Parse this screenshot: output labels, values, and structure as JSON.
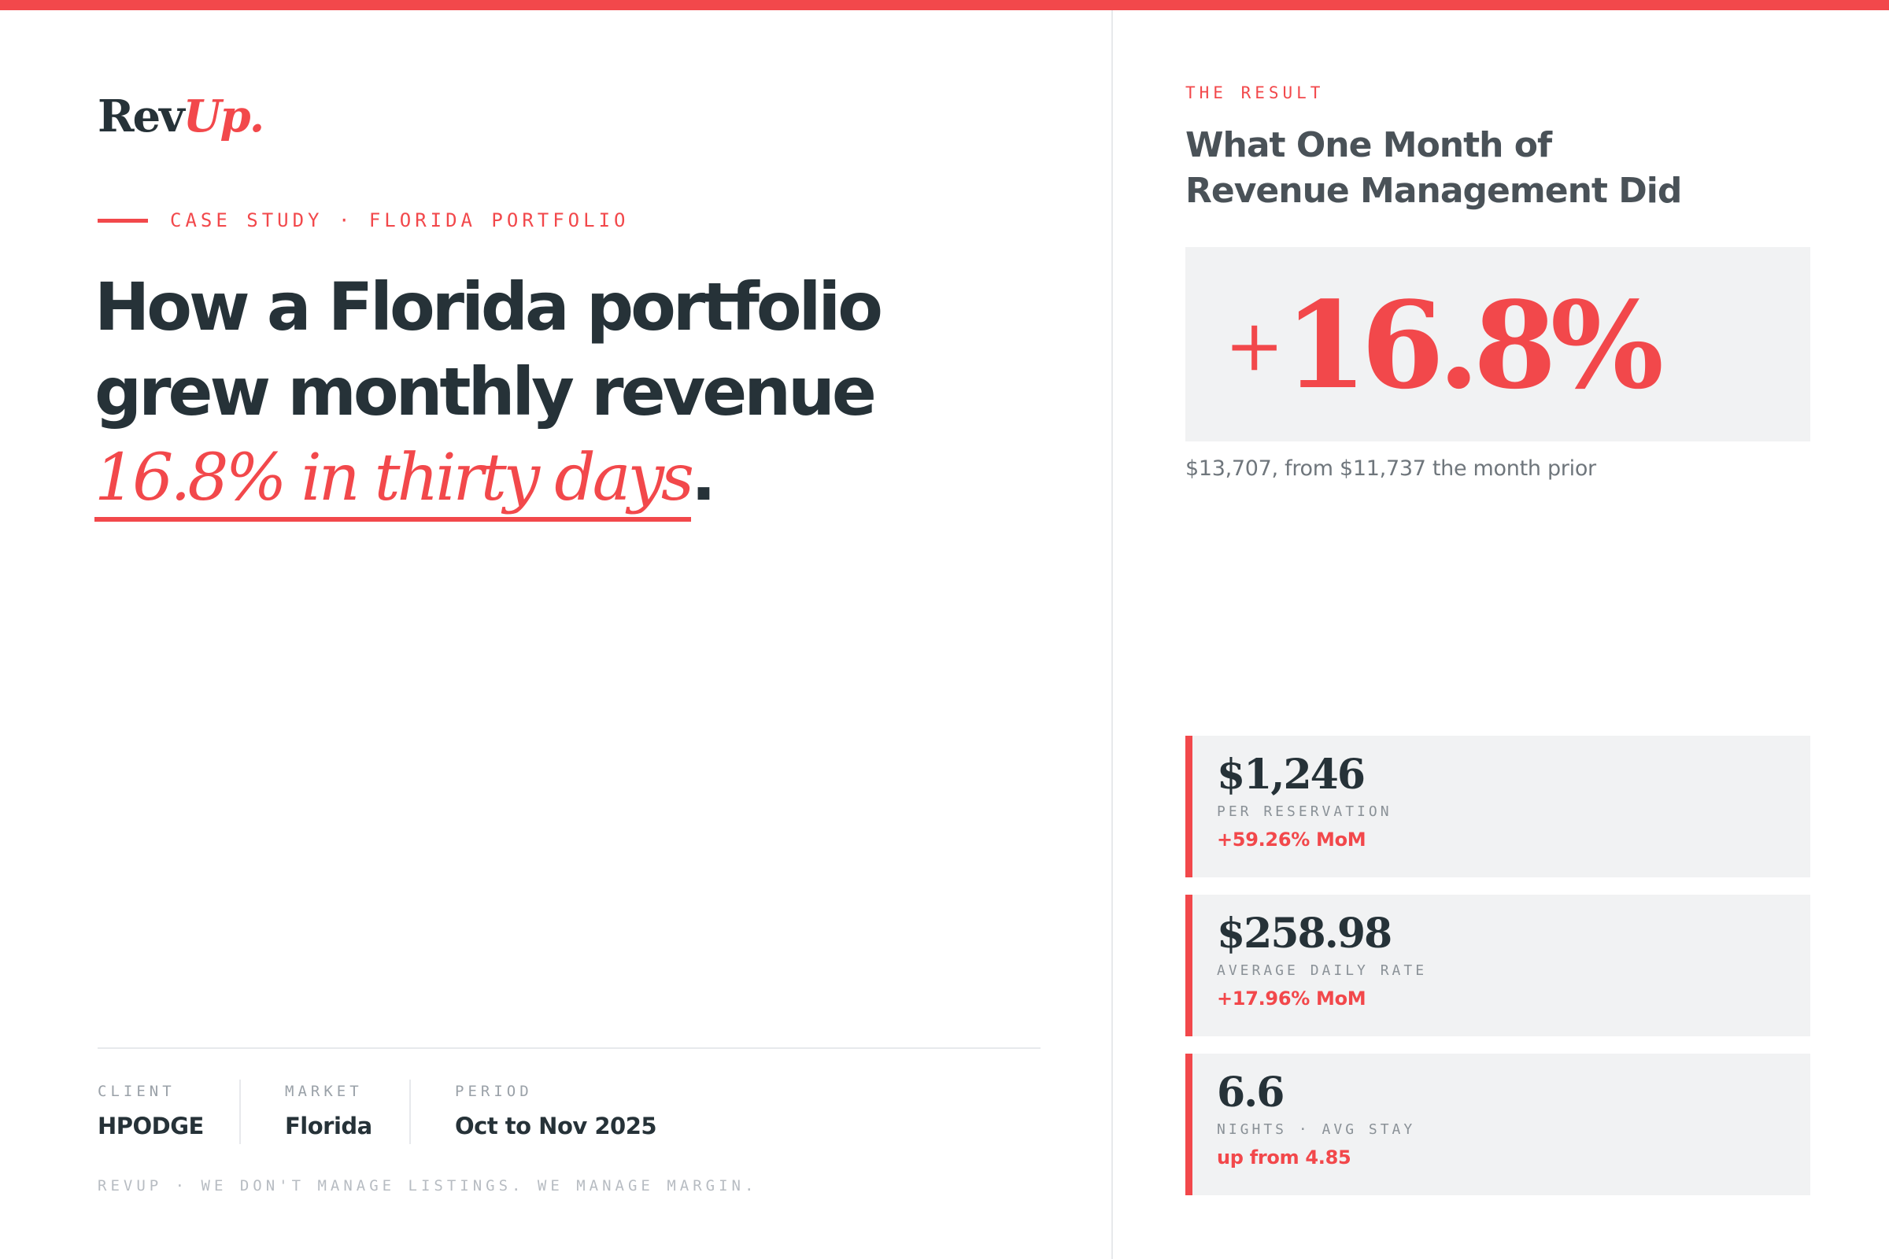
{
  "brand": {
    "name_part1": "Rev",
    "name_part2": "Up."
  },
  "eyebrow": "CASE STUDY · FLORIDA PORTFOLIO",
  "headline": {
    "line1": "How a Florida portfolio",
    "line2": "grew monthly revenue",
    "accent": "16.8% in thirty days",
    "period": "."
  },
  "meta": [
    {
      "label": "CLIENT",
      "value": "HPODGE"
    },
    {
      "label": "MARKET",
      "value": "Florida"
    },
    {
      "label": "PERIOD",
      "value": "Oct to Nov 2025"
    }
  ],
  "tagline": "REVUP · WE DON'T MANAGE LISTINGS. WE MANAGE MARGIN.",
  "result": {
    "label": "THE RESULT",
    "title_line1": "What One Month of",
    "title_line2": "Revenue Management Did",
    "big_plus": "+",
    "big_number": "16.8%",
    "sub": "$13,707, from $11,737 the month prior"
  },
  "stats": [
    {
      "value": "$1,246",
      "label": "PER RESERVATION",
      "change": "+59.26% MoM"
    },
    {
      "value": "$258.98",
      "label": "AVERAGE DAILY RATE",
      "change": "+17.96% MoM"
    },
    {
      "value": "6.6",
      "label": "NIGHTS · AVG STAY",
      "change": "up from 4.85"
    }
  ],
  "colors": {
    "accent": "#f2484b",
    "ink": "#263238",
    "panel": "#f1f2f3"
  }
}
